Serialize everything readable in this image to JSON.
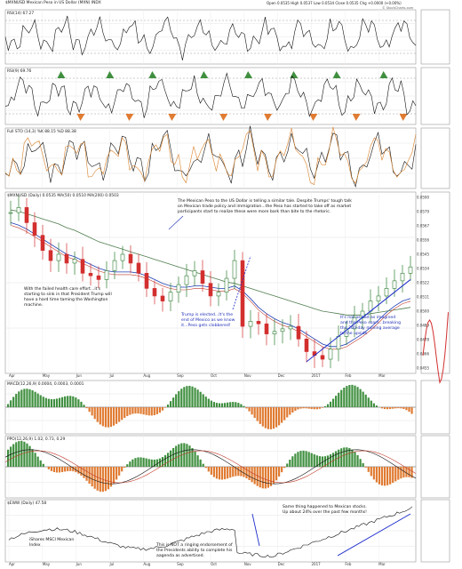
{
  "header": {
    "symbol_title": "$MXNUSD Mexican Peso in US Dollar (MXN) INDX",
    "ohlc": "Open 0.0535  High 0.0537  Low 0.0534  Close 0.0535  Chg +0.0000 (+0.00%)",
    "watermark": "© StockCharts.com"
  },
  "panels": {
    "rsi1": "RSI(14) 67.27",
    "rsi2": "RSI(9) 69.76",
    "stoch": "Full STO (14,3) %K 88.15  %D 88.38",
    "price": "$MXNUSD (Daily) 0.0535  MA(50) 0.0510  MA(200) 0.0503",
    "hist1": "MACD(12,26,9) 0.0004, 0.0003, 0.0001",
    "macd2": "PPO(12,26,9) 1.02, 0.73, 0.29",
    "bottom": "$EWW (Daily) 47.58"
  },
  "notes": {
    "top": "The Mexican Peso to the US Dollar is telling a similar tale. Despite Trumps' tough talk on Mexican trade policy and immigration...the Peso has started to take off as market participants start to realize these were more bark than bite to the rhetoric.",
    "left": "With the failed health care effort...it's starting to sink in that President Trump will have a hard time taming the Washington machine.",
    "trump": "Trump is elected...It's the end of Mexico as we know it...Peso gets clobbered!",
    "right": "It's not as bad as imagined and the Peso soars...breaking the 200-day moving average to the upside",
    "ishares": "iShares MSCI Mexican Index",
    "endorse": "This is NOT a ringing endorsement of the Presidents ability to complete his aagenda as advertised.",
    "stocks": "Same thing happened to Mexican stocks. Up about 24% over the past few months!"
  },
  "months": [
    "Apr",
    "May",
    "Jun",
    "Jul",
    "Aug",
    "Sep",
    "Oct",
    "Nov",
    "Dec",
    "2017",
    "Feb",
    "Mar"
  ],
  "colors": {
    "up": "#2e7d32",
    "down": "#d32f2f",
    "hist_pos": "#3f8f3f",
    "hist_neg": "#e07b32",
    "ma50": "#1f3fb5",
    "ma200": "#4e7d4e",
    "trend": "#1f2fcc",
    "line": "#111111"
  },
  "chart_data": {
    "type": "line",
    "title": "$MXNUSD Mexican Peso in US Dollar (MXN) INDX",
    "x_start": "2016-04",
    "x_end": "2017-03",
    "series": [
      {
        "name": "$MXNUSD",
        "values": [
          0.0578,
          0.0582,
          0.057,
          0.056,
          0.0548,
          0.054,
          0.0545,
          0.0538,
          0.0541,
          0.053,
          0.0528,
          0.0525,
          0.0532,
          0.054,
          0.0545,
          0.0538,
          0.053,
          0.0518,
          0.0512,
          0.0508,
          0.0515,
          0.0521,
          0.0528,
          0.0532,
          0.0522,
          0.0512,
          0.0515,
          0.0526,
          0.054,
          0.0488,
          0.0492,
          0.049,
          0.0482,
          0.0484,
          0.0486,
          0.0488,
          0.0478,
          0.0468,
          0.0465,
          0.0462,
          0.047,
          0.048,
          0.0486,
          0.0495,
          0.05,
          0.0508,
          0.0512,
          0.0518,
          0.0524,
          0.053,
          0.0535
        ]
      },
      {
        "name": "MA(50)",
        "values": [
          0.057,
          0.0568,
          0.0565,
          0.0561,
          0.0557,
          0.0553,
          0.0549,
          0.0545,
          0.0543,
          0.054,
          0.0537,
          0.0534,
          0.0532,
          0.0531,
          0.0531,
          0.0531,
          0.053,
          0.0528,
          0.0525,
          0.0522,
          0.052,
          0.0519,
          0.0519,
          0.052,
          0.052,
          0.0519,
          0.0518,
          0.0518,
          0.052,
          0.0516,
          0.051,
          0.0503,
          0.0498,
          0.0494,
          0.0491,
          0.0489,
          0.0486,
          0.0482,
          0.0478,
          0.0474,
          0.0472,
          0.0472,
          0.0474,
          0.0478,
          0.0482,
          0.0487,
          0.0493,
          0.0499,
          0.0504,
          0.0508,
          0.051
        ]
      },
      {
        "name": "MA(200)",
        "values": [
          0.058,
          0.0579,
          0.0577,
          0.0575,
          0.0573,
          0.0571,
          0.0569,
          0.0566,
          0.0564,
          0.0561,
          0.0558,
          0.0555,
          0.0553,
          0.0551,
          0.0549,
          0.0547,
          0.0545,
          0.0543,
          0.0541,
          0.0539,
          0.0537,
          0.0535,
          0.0533,
          0.0531,
          0.0529,
          0.0527,
          0.0525,
          0.0523,
          0.0522,
          0.052,
          0.0518,
          0.0516,
          0.0514,
          0.0512,
          0.051,
          0.0508,
          0.0506,
          0.0504,
          0.0502,
          0.05,
          0.0499,
          0.0498,
          0.0497,
          0.0497,
          0.0497,
          0.0498,
          0.0499,
          0.05,
          0.0501,
          0.0502,
          0.0503
        ]
      }
    ],
    "ylim": [
      0.0455,
      0.059
    ]
  }
}
